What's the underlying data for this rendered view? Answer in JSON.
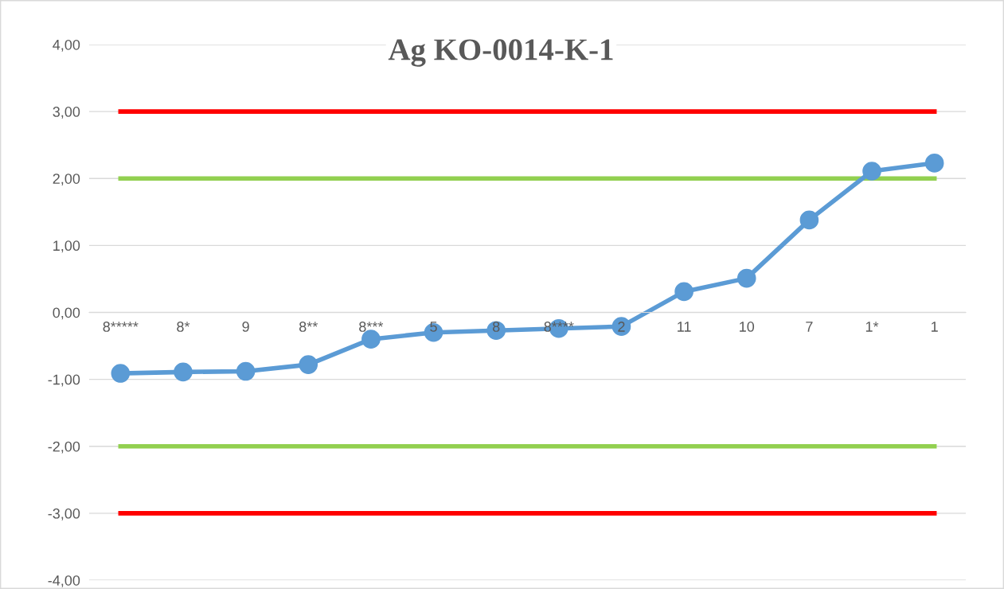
{
  "chart_data": {
    "type": "line",
    "title": "Ag KO-0014-K-1",
    "categories": [
      "8*****",
      "8*",
      "9",
      "8**",
      "8***",
      "5",
      "8",
      "8****",
      "2",
      "11",
      "10",
      "7",
      "1*",
      "1"
    ],
    "series": [
      {
        "color": "#ff0000",
        "marker": "none",
        "values": [
          3,
          3,
          3,
          3,
          3,
          3,
          3,
          3,
          3,
          3,
          3,
          3,
          3,
          3
        ]
      },
      {
        "color": "#92d050",
        "marker": "none",
        "values": [
          2,
          2,
          2,
          2,
          2,
          2,
          2,
          2,
          2,
          2,
          2,
          2,
          2,
          2
        ]
      },
      {
        "color": "#92d050",
        "marker": "none",
        "values": [
          -2,
          -2,
          -2,
          -2,
          -2,
          -2,
          -2,
          -2,
          -2,
          -2,
          -2,
          -2,
          -2,
          -2
        ]
      },
      {
        "color": "#ff0000",
        "marker": "none",
        "values": [
          -3,
          -3,
          -3,
          -3,
          -3,
          -3,
          -3,
          -3,
          -3,
          -3,
          -3,
          -3,
          -3,
          -3
        ]
      },
      {
        "color": "#5b9bd5",
        "values": [
          -0.91,
          -0.89,
          -0.88,
          -0.78,
          -0.4,
          -0.3,
          -0.27,
          -0.24,
          -0.21,
          0.31,
          0.51,
          1.38,
          2.11,
          2.23
        ]
      }
    ],
    "marker": "circle",
    "line_style": "solid",
    "grid": "y",
    "legend": false,
    "ylim": [
      -4,
      4
    ],
    "yticks": [
      {
        "value": -4,
        "label": "-4,00"
      },
      {
        "value": -3,
        "label": "-3,00"
      },
      {
        "value": -2,
        "label": "-2,00"
      },
      {
        "value": -1,
        "label": "-1,00"
      },
      {
        "value": 0,
        "label": "0,00"
      },
      {
        "value": 1,
        "label": "1,00"
      },
      {
        "value": 2,
        "label": "2,00"
      },
      {
        "value": 3,
        "label": "3,00"
      },
      {
        "value": 4,
        "label": "4,00"
      }
    ]
  }
}
